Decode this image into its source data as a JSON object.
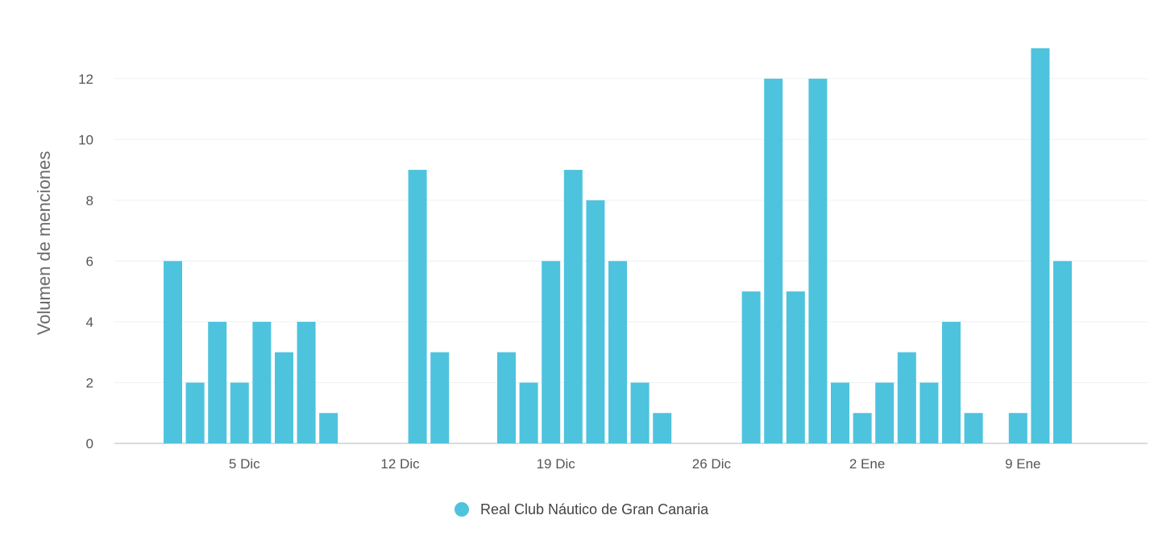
{
  "chart_data": {
    "type": "bar",
    "ylabel": "Volumen de menciones",
    "xlabel": "",
    "ylim": [
      0,
      13
    ],
    "yticks": [
      0,
      2,
      4,
      6,
      8,
      10,
      12
    ],
    "grid": true,
    "legend_position": "bottom",
    "x_start_date": "2023-11-30",
    "date_tick_labels": [
      {
        "label": "5 Dic",
        "date": "2023-12-05"
      },
      {
        "label": "12 Dic",
        "date": "2023-12-12"
      },
      {
        "label": "19 Dic",
        "date": "2023-12-19"
      },
      {
        "label": "26 Dic",
        "date": "2023-12-26"
      },
      {
        "label": "2 Ene",
        "date": "2024-01-02"
      },
      {
        "label": "9 Ene",
        "date": "2024-01-09"
      }
    ],
    "series": [
      {
        "name": "Real Club Náutico de Gran Canaria",
        "color": "#4ec3de",
        "points": [
          {
            "date": "2023-12-02",
            "value": 6
          },
          {
            "date": "2023-12-03",
            "value": 2
          },
          {
            "date": "2023-12-04",
            "value": 4
          },
          {
            "date": "2023-12-05",
            "value": 2
          },
          {
            "date": "2023-12-06",
            "value": 4
          },
          {
            "date": "2023-12-07",
            "value": 3
          },
          {
            "date": "2023-12-08",
            "value": 4
          },
          {
            "date": "2023-12-09",
            "value": 1
          },
          {
            "date": "2023-12-13",
            "value": 9
          },
          {
            "date": "2023-12-14",
            "value": 3
          },
          {
            "date": "2023-12-17",
            "value": 3
          },
          {
            "date": "2023-12-18",
            "value": 2
          },
          {
            "date": "2023-12-19",
            "value": 6
          },
          {
            "date": "2023-12-20",
            "value": 9
          },
          {
            "date": "2023-12-21",
            "value": 8
          },
          {
            "date": "2023-12-22",
            "value": 6
          },
          {
            "date": "2023-12-23",
            "value": 2
          },
          {
            "date": "2023-12-24",
            "value": 1
          },
          {
            "date": "2023-12-28",
            "value": 5
          },
          {
            "date": "2023-12-29",
            "value": 12
          },
          {
            "date": "2023-12-30",
            "value": 5
          },
          {
            "date": "2023-12-31",
            "value": 12
          },
          {
            "date": "2024-01-01",
            "value": 2
          },
          {
            "date": "2024-01-02",
            "value": 1
          },
          {
            "date": "2024-01-03",
            "value": 2
          },
          {
            "date": "2024-01-04",
            "value": 3
          },
          {
            "date": "2024-01-05",
            "value": 2
          },
          {
            "date": "2024-01-06",
            "value": 4
          },
          {
            "date": "2024-01-07",
            "value": 1
          },
          {
            "date": "2024-01-09",
            "value": 1
          },
          {
            "date": "2024-01-10",
            "value": 13
          },
          {
            "date": "2024-01-11",
            "value": 6
          }
        ]
      }
    ]
  }
}
